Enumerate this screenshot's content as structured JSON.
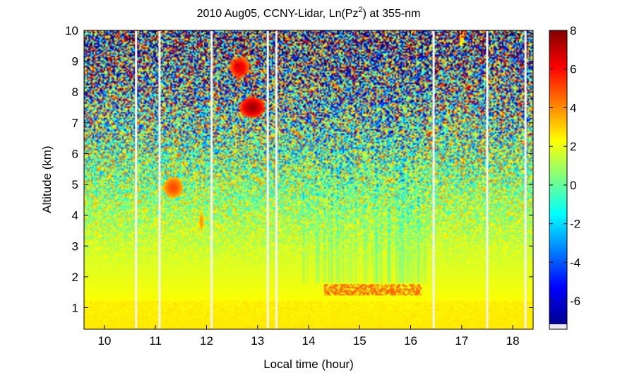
{
  "chart_data": {
    "type": "heatmap",
    "title": "2010 Aug05, CCNY-Lidar, Ln(Pz",
    "title_sup": "2",
    "title_tail": ") at 355-nm",
    "xlabel": "Local time (hour)",
    "ylabel": "Altitude (km)",
    "xlim": [
      9.6,
      18.4
    ],
    "ylim": [
      0.3,
      10
    ],
    "xticks": [
      10,
      11,
      12,
      13,
      14,
      15,
      16,
      17,
      18
    ],
    "yticks": [
      1,
      2,
      3,
      4,
      5,
      6,
      7,
      8,
      9,
      10
    ],
    "colorbar": {
      "lim": [
        -7.2,
        8
      ],
      "ticks": [
        -6,
        -4,
        -2,
        0,
        2,
        4,
        6,
        8
      ],
      "colormap": "jet"
    },
    "data_gaps_hours": [
      10.62,
      11.08,
      12.1,
      13.2,
      13.37,
      16.45,
      17.5,
      18.25
    ],
    "features": [
      {
        "kind": "boundary-layer",
        "time": [
          9.6,
          18.4
        ],
        "altitude_top": 1.2,
        "value": 2.5
      },
      {
        "kind": "cloud-top-layer",
        "time": [
          14.3,
          16.2
        ],
        "altitude": 1.6,
        "value": 4.5
      },
      {
        "kind": "cloud",
        "time": [
          11.15,
          11.55
        ],
        "altitude": 4.9,
        "value": 5.0
      },
      {
        "kind": "cloud",
        "time": [
          11.85,
          11.95
        ],
        "altitude": 3.8,
        "value": 4.0
      },
      {
        "kind": "cloud",
        "time": [
          12.45,
          12.85
        ],
        "altitude": 8.8,
        "value": 6.5
      },
      {
        "kind": "cloud",
        "time": [
          12.65,
          13.15
        ],
        "altitude": 7.5,
        "value": 7.5
      },
      {
        "kind": "cloud",
        "time": [
          16.95,
          17.05
        ],
        "altitude": 9.8,
        "value": 3.0
      }
    ]
  }
}
